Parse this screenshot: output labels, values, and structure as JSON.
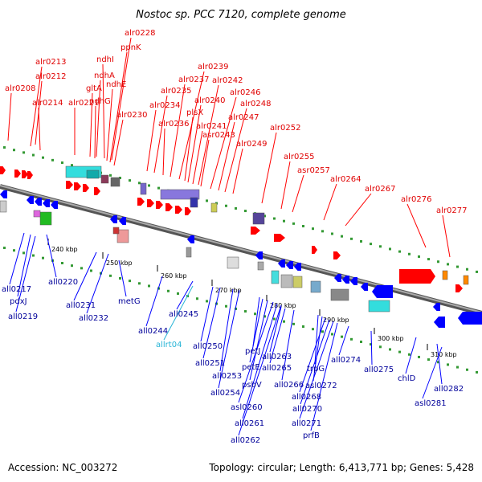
{
  "title": "Nostoc sp. PCC 7120, complete genome",
  "accession": "Accession: NC_003272",
  "summary": "Topology: circular; Length: 6,413,771 bp; Genes: 5,428",
  "colors": {
    "forward": "#ff0000",
    "reverse": "#0000ff",
    "forward_label": "#e00000",
    "reverse_label": "#00009a",
    "rna_label": "#27b4d6",
    "backbone": "#888888",
    "dots": "#339933"
  },
  "kbp_ticks": [
    "240 kbp",
    "250 kbp",
    "260 kbp",
    "270 kbp",
    "280 kbp",
    "290 kbp",
    "300 kbp",
    "310 kbp"
  ],
  "top_labels": [
    "alr0208",
    "alr0213",
    "alr0212",
    "alr0214",
    "alr0221",
    "gltA",
    "ndhG",
    "ndhA",
    "ndhI",
    "ndhE",
    "ppnK",
    "alr0228",
    "alr0230",
    "alr0234",
    "alr0235",
    "alr0236",
    "alr0237",
    "alr0239",
    "plsX",
    "alr0240",
    "alr0241",
    "alr0242",
    "asr0243",
    "alr0246",
    "alr0247",
    "alr0248",
    "alr0249",
    "alr0252",
    "alr0255",
    "asr0257",
    "alr0264",
    "alr0267",
    "alr0276",
    "alr0277"
  ],
  "bottom_labels": [
    "all0217",
    "pdxJ",
    "all0219",
    "all0220",
    "all0231",
    "all0232",
    "metG",
    "all0244",
    "all0245",
    "allrt04",
    "all0250",
    "all0251",
    "all0253",
    "all0254",
    "petJ",
    "petE",
    "psbV",
    "asl0260",
    "all0261",
    "all0262",
    "all0263",
    "all0265",
    "all0266",
    "trpG",
    "asl0272",
    "all0268",
    "all0270",
    "all0271",
    "prfB",
    "all0274",
    "all0275",
    "chlD",
    "all0282",
    "asl0281"
  ]
}
